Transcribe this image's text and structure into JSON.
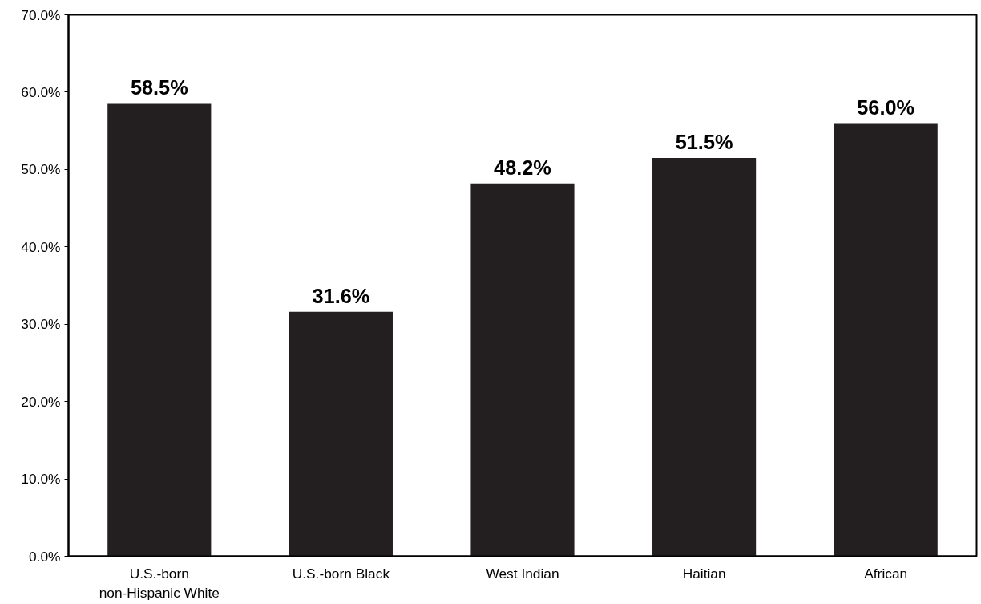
{
  "chart_data": {
    "type": "bar",
    "categories": [
      "U.S.-born\nnon-Hispanic White",
      "U.S.-born Black",
      "West Indian",
      "Haitian",
      "African"
    ],
    "values": [
      58.5,
      31.6,
      48.2,
      51.5,
      56.0
    ],
    "value_labels": [
      "58.5%",
      "31.6%",
      "48.2%",
      "51.5%",
      "56.0%"
    ],
    "color": "#231f20",
    "ylim": [
      0,
      70
    ],
    "yticks": [
      {
        "value": 0,
        "label": "0.0%"
      },
      {
        "value": 10,
        "label": "10.0%"
      },
      {
        "value": 20,
        "label": "20.0%"
      },
      {
        "value": 30,
        "label": "30.0%"
      },
      {
        "value": 40,
        "label": "40.0%"
      },
      {
        "value": 50,
        "label": "50.0%"
      },
      {
        "value": 60,
        "label": "60.0%"
      },
      {
        "value": 70,
        "label": "70.0%"
      }
    ],
    "grid": false
  }
}
